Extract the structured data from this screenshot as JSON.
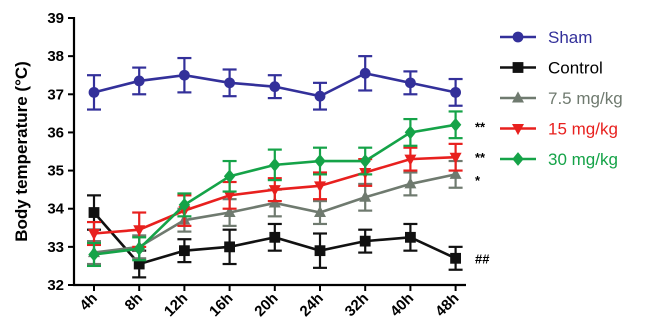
{
  "chart_data": {
    "type": "line",
    "title": "",
    "xlabel": "",
    "ylabel": "Body temperature (°C)",
    "ylim": [
      32,
      39
    ],
    "yticks": [
      "32",
      "33",
      "34",
      "35",
      "36",
      "37",
      "38",
      "39"
    ],
    "categories": [
      "4h",
      "8h",
      "12h",
      "16h",
      "20h",
      "24h",
      "32h",
      "40h",
      "48h"
    ],
    "legend_position": "right",
    "grid": false,
    "series": [
      {
        "name": "Sham",
        "color": "#33309a",
        "marker": "circle",
        "values": [
          37.05,
          37.35,
          37.5,
          37.3,
          37.2,
          36.95,
          37.55,
          37.3,
          37.05
        ],
        "errors": [
          0.45,
          0.35,
          0.45,
          0.35,
          0.3,
          0.35,
          0.45,
          0.3,
          0.35
        ]
      },
      {
        "name": "Control",
        "color": "#111111",
        "marker": "square",
        "values": [
          33.9,
          32.55,
          32.9,
          33.0,
          33.25,
          32.9,
          33.15,
          33.25,
          32.7
        ],
        "errors": [
          0.45,
          0.35,
          0.3,
          0.45,
          0.35,
          0.45,
          0.3,
          0.35,
          0.3
        ]
      },
      {
        "name": "7.5 mg/kg",
        "color": "#6f7a6f",
        "marker": "triangle-up",
        "values": [
          32.85,
          33.0,
          33.7,
          33.9,
          34.15,
          33.9,
          34.3,
          34.65,
          34.9
        ],
        "errors": [
          0.3,
          0.3,
          0.3,
          0.35,
          0.35,
          0.3,
          0.35,
          0.3,
          0.35
        ]
      },
      {
        "name": "15 mg/kg",
        "color": "#e8201e",
        "marker": "triangle-down",
        "values": [
          33.35,
          33.45,
          33.95,
          34.35,
          34.5,
          34.6,
          34.95,
          35.3,
          35.35
        ],
        "errors": [
          0.3,
          0.45,
          0.4,
          0.35,
          0.3,
          0.35,
          0.35,
          0.3,
          0.35
        ]
      },
      {
        "name": "30 mg/kg",
        "color": "#15a348",
        "marker": "diamond",
        "values": [
          32.8,
          32.95,
          34.1,
          34.85,
          35.15,
          35.25,
          35.25,
          36.0,
          36.2
        ],
        "errors": [
          0.3,
          0.3,
          0.3,
          0.4,
          0.4,
          0.35,
          0.35,
          0.35,
          0.35
        ]
      }
    ],
    "annotations": [
      {
        "text": "**",
        "value": 36.15
      },
      {
        "text": "**",
        "value": 35.35
      },
      {
        "text": "*",
        "value": 34.75
      },
      {
        "text": "##",
        "value": 32.7
      }
    ]
  }
}
